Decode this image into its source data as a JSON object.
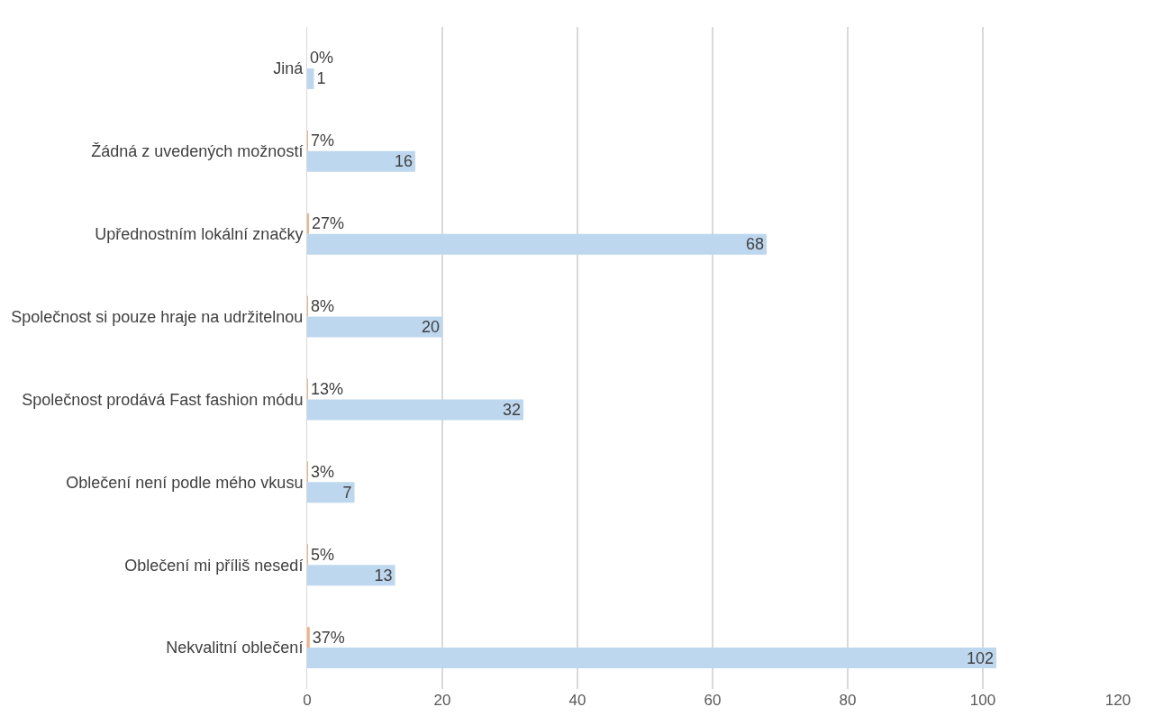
{
  "chart_data": {
    "type": "bar",
    "orientation": "horizontal",
    "categories": [
      "Jiná",
      "Žádná z uvedených možností",
      "Upřednostním lokální značky",
      "Společnost si pouze hraje na udržitelnou",
      "Společnost prodává Fast fashion módu",
      "Oblečení není podle mého vkusu",
      "Oblečení mi příliš nesedí",
      "Nekvalitní oblečení"
    ],
    "series": [
      {
        "color": "#f4b183",
        "values": [
          0,
          0.07,
          0.27,
          0.08,
          0.13,
          0.03,
          0.05,
          0.37
        ],
        "value_labels": [
          "0%",
          "7%",
          "27%",
          "8%",
          "13%",
          "3%",
          "5%",
          "37%"
        ]
      },
      {
        "color": "#bdd7ee",
        "values": [
          1,
          16,
          68,
          20,
          32,
          7,
          13,
          102
        ],
        "value_labels": [
          "1",
          "16",
          "68",
          "20",
          "32",
          "7",
          "13",
          "102"
        ]
      }
    ],
    "xlim": [
      0,
      120
    ],
    "xticks": [
      0,
      20,
      40,
      60,
      80,
      100,
      120
    ],
    "grid": "x"
  }
}
